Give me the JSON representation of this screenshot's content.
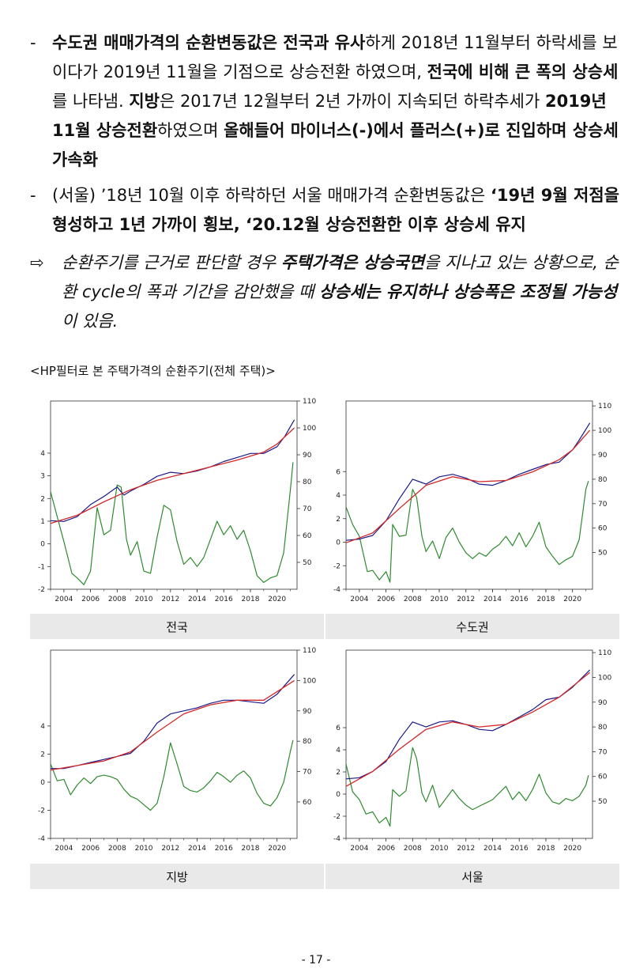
{
  "bullets": [
    {
      "mark": "-",
      "segments": [
        {
          "t": "수도권 매매가격의 순환변동값은 전국과 유사",
          "b": true
        },
        {
          "t": "하게 2018년 11월부터 하락세를 보이다가 2019년 11월을 기점으로 상승전환 하였으며, ",
          "b": false
        },
        {
          "t": "전국에 비해 큰 폭의 상승세",
          "b": true
        },
        {
          "t": "를 나타냄. ",
          "b": false
        },
        {
          "t": "지방",
          "b": true
        },
        {
          "t": "은 2017년 12월부터 2년 가까이 지속되던 하락추세가 ",
          "b": false
        },
        {
          "t": "2019년 11월 상승전환",
          "b": true
        },
        {
          "t": "하였으며 ",
          "b": false
        },
        {
          "t": "올해들어 마이너스(-)에서 플러스(+)로 진입하며 상승세 가속화",
          "b": true
        }
      ]
    },
    {
      "mark": "-",
      "segments": [
        {
          "t": "(서울) ’18년 10월 이후 하락하던 서울 매매가격 순환변동값은 ",
          "b": false
        },
        {
          "t": "‘19년 9월 저점을 형성하고 1년 가까이 횡보, ‘20.12월 상승전환한 이후 상승세 유지",
          "b": true
        }
      ]
    }
  ],
  "conclusion": {
    "mark": "⇨",
    "segments": [
      {
        "t": "순환주기를 근거로 판단할 경우 ",
        "b": false
      },
      {
        "t": "주택가격은 상승국면",
        "b": true
      },
      {
        "t": "을 지나고 있는 상황으로, 순환 cycle의 폭과 기간을 감안했을 때 ",
        "b": false
      },
      {
        "t": "상승세는 유지하나 상승폭은 조정될 가능성",
        "b": true
      },
      {
        "t": "이 있음.",
        "b": false
      }
    ]
  },
  "figure_title": "<HP필터로 본 주택가격의 순환주기(전체 주택)>",
  "colors": {
    "index": "#1a1a8c",
    "trend": "#d42828",
    "cycle": "#2e8b2e"
  },
  "chart_data": [
    {
      "type": "line",
      "caption": "전국",
      "x_ticks": [
        "2004",
        "2006",
        "2008",
        "2010",
        "2012",
        "2014",
        "2016",
        "2018",
        "2020"
      ],
      "left_ticks": [
        "-2",
        "-1",
        "0",
        "1",
        "2",
        "3",
        "4"
      ],
      "right_ticks": [
        "50",
        "60",
        "70",
        "80",
        "90",
        "100",
        "110"
      ],
      "ylim_left": [
        -2,
        6.3
      ],
      "ylim_right": [
        40,
        110
      ],
      "index": [
        [
          2003,
          65.5
        ],
        [
          2004,
          65.2
        ],
        [
          2005,
          67
        ],
        [
          2006,
          71.5
        ],
        [
          2007,
          74.5
        ],
        [
          2008,
          78
        ],
        [
          2008.5,
          75
        ],
        [
          2009,
          76.5
        ],
        [
          2010,
          79
        ],
        [
          2011,
          82
        ],
        [
          2012,
          83.5
        ],
        [
          2013,
          83
        ],
        [
          2014,
          84
        ],
        [
          2015,
          85.5
        ],
        [
          2016,
          87.5
        ],
        [
          2017,
          89
        ],
        [
          2018,
          90.5
        ],
        [
          2019,
          90.5
        ],
        [
          2020,
          93
        ],
        [
          2020.6,
          97
        ],
        [
          2021.3,
          103
        ]
      ],
      "trend": [
        [
          2003,
          64.5
        ],
        [
          2005,
          67.5
        ],
        [
          2007,
          72.5
        ],
        [
          2009,
          77
        ],
        [
          2011,
          80.5
        ],
        [
          2013,
          83
        ],
        [
          2015,
          85.5
        ],
        [
          2017,
          88
        ],
        [
          2019,
          91
        ],
        [
          2020,
          94
        ],
        [
          2021.3,
          100
        ]
      ],
      "cycle": [
        [
          2003,
          2.3
        ],
        [
          2003.5,
          1.2
        ],
        [
          2004,
          0.1
        ],
        [
          2004.6,
          -1.3
        ],
        [
          2005,
          -1.5
        ],
        [
          2005.5,
          -1.8
        ],
        [
          2006,
          -1.2
        ],
        [
          2006.5,
          1.6
        ],
        [
          2007,
          0.4
        ],
        [
          2007.5,
          0.6
        ],
        [
          2008,
          2.6
        ],
        [
          2008.3,
          2.5
        ],
        [
          2008.7,
          0.2
        ],
        [
          2009,
          -0.5
        ],
        [
          2009.5,
          0.1
        ],
        [
          2010,
          -1.2
        ],
        [
          2010.5,
          -1.3
        ],
        [
          2011,
          0.3
        ],
        [
          2011.5,
          1.7
        ],
        [
          2012,
          1.5
        ],
        [
          2012.5,
          0.1
        ],
        [
          2013,
          -0.9
        ],
        [
          2013.5,
          -0.6
        ],
        [
          2014,
          -1
        ],
        [
          2014.5,
          -0.6
        ],
        [
          2015,
          0.2
        ],
        [
          2015.5,
          1
        ],
        [
          2016,
          0.4
        ],
        [
          2016.5,
          0.8
        ],
        [
          2017,
          0.2
        ],
        [
          2017.5,
          0.6
        ],
        [
          2018,
          -0.3
        ],
        [
          2018.5,
          -1.4
        ],
        [
          2019,
          -1.7
        ],
        [
          2019.5,
          -1.5
        ],
        [
          2020,
          -1.4
        ],
        [
          2020.5,
          -0.4
        ],
        [
          2021,
          2.4
        ],
        [
          2021.2,
          3.6
        ]
      ]
    },
    {
      "type": "line",
      "caption": "수도권",
      "x_ticks": [
        "2004",
        "2006",
        "2008",
        "2010",
        "2012",
        "2014",
        "2016",
        "2018",
        "2020"
      ],
      "left_ticks": [
        "-4",
        "-2",
        "0",
        "2",
        "4",
        "6"
      ],
      "right_ticks": [
        "50",
        "60",
        "70",
        "80",
        "90",
        "100",
        "110"
      ],
      "ylim_left": [
        -4,
        12
      ],
      "ylim_right": [
        35,
        112
      ],
      "index": [
        [
          2003,
          55
        ],
        [
          2004,
          55.5
        ],
        [
          2005,
          57
        ],
        [
          2006,
          63
        ],
        [
          2007,
          72
        ],
        [
          2008,
          80
        ],
        [
          2008.5,
          79
        ],
        [
          2009,
          78
        ],
        [
          2010,
          81
        ],
        [
          2011,
          82
        ],
        [
          2012,
          80.5
        ],
        [
          2013,
          78
        ],
        [
          2014,
          77.5
        ],
        [
          2015,
          79.5
        ],
        [
          2016,
          82
        ],
        [
          2017,
          84
        ],
        [
          2018,
          86
        ],
        [
          2019,
          87
        ],
        [
          2020,
          92
        ],
        [
          2020.5,
          96
        ],
        [
          2021.3,
          103
        ]
      ],
      "trend": [
        [
          2003,
          54
        ],
        [
          2005,
          58
        ],
        [
          2007,
          68
        ],
        [
          2009,
          77.5
        ],
        [
          2011,
          81
        ],
        [
          2013,
          79
        ],
        [
          2015,
          79.5
        ],
        [
          2017,
          83
        ],
        [
          2019,
          88
        ],
        [
          2020,
          92
        ],
        [
          2021.3,
          100
        ]
      ],
      "cycle": [
        [
          2003,
          3
        ],
        [
          2003.5,
          1.5
        ],
        [
          2004,
          0.5
        ],
        [
          2004.6,
          -2.5
        ],
        [
          2005,
          -2.4
        ],
        [
          2005.5,
          -3.2
        ],
        [
          2006,
          -2.5
        ],
        [
          2006.3,
          -3.4
        ],
        [
          2006.5,
          1.5
        ],
        [
          2007,
          0.5
        ],
        [
          2007.5,
          0.6
        ],
        [
          2008,
          4.5
        ],
        [
          2008.3,
          3.8
        ],
        [
          2008.7,
          0.5
        ],
        [
          2009,
          -0.8
        ],
        [
          2009.5,
          0.1
        ],
        [
          2010,
          -1.4
        ],
        [
          2010.5,
          0.4
        ],
        [
          2011,
          1.2
        ],
        [
          2011.5,
          0
        ],
        [
          2012,
          -0.9
        ],
        [
          2012.5,
          -1.4
        ],
        [
          2013,
          -0.9
        ],
        [
          2013.5,
          -1.2
        ],
        [
          2014,
          -0.6
        ],
        [
          2014.5,
          -0.2
        ],
        [
          2015,
          0.5
        ],
        [
          2015.5,
          -0.3
        ],
        [
          2016,
          0.8
        ],
        [
          2016.5,
          -0.4
        ],
        [
          2017,
          0.5
        ],
        [
          2017.5,
          1.7
        ],
        [
          2018,
          -0.4
        ],
        [
          2018.5,
          -1.2
        ],
        [
          2019,
          -1.9
        ],
        [
          2019.5,
          -1.5
        ],
        [
          2020,
          -1.2
        ],
        [
          2020.5,
          0.2
        ],
        [
          2021,
          4.5
        ],
        [
          2021.2,
          5.2
        ]
      ]
    },
    {
      "type": "line",
      "caption": "지방",
      "x_ticks": [
        "2004",
        "2006",
        "2008",
        "2010",
        "2012",
        "2014",
        "2016",
        "2018",
        "2020"
      ],
      "left_ticks": [
        "-4",
        "-2",
        "0",
        "2",
        "4"
      ],
      "right_ticks": [
        "60",
        "70",
        "80",
        "90",
        "100",
        "110"
      ],
      "ylim_left": [
        -4,
        9.4
      ],
      "ylim_right": [
        48,
        110
      ],
      "index": [
        [
          2003,
          71
        ],
        [
          2004,
          71
        ],
        [
          2005,
          72
        ],
        [
          2006,
          73
        ],
        [
          2007,
          74
        ],
        [
          2008,
          75
        ],
        [
          2009,
          76
        ],
        [
          2010,
          80
        ],
        [
          2011,
          86
        ],
        [
          2012,
          89
        ],
        [
          2013,
          90
        ],
        [
          2014,
          91
        ],
        [
          2015,
          92.5
        ],
        [
          2016,
          93.5
        ],
        [
          2017,
          93.5
        ],
        [
          2018,
          93
        ],
        [
          2019,
          92.5
        ],
        [
          2020,
          95.5
        ],
        [
          2021.3,
          102
        ]
      ],
      "trend": [
        [
          2003,
          70.5
        ],
        [
          2005,
          72
        ],
        [
          2007,
          73.5
        ],
        [
          2009,
          76.5
        ],
        [
          2011,
          83
        ],
        [
          2013,
          89
        ],
        [
          2015,
          92
        ],
        [
          2017,
          93.5
        ],
        [
          2019,
          93.5
        ],
        [
          2021.3,
          100
        ]
      ],
      "cycle": [
        [
          2003,
          1.3
        ],
        [
          2003.5,
          0.1
        ],
        [
          2004,
          0.2
        ],
        [
          2004.5,
          -0.9
        ],
        [
          2005,
          -0.2
        ],
        [
          2005.5,
          0.3
        ],
        [
          2006,
          -0.1
        ],
        [
          2006.5,
          0.4
        ],
        [
          2007,
          0.5
        ],
        [
          2007.5,
          0.4
        ],
        [
          2008,
          0.2
        ],
        [
          2008.5,
          -0.5
        ],
        [
          2009,
          -1
        ],
        [
          2009.5,
          -1.2
        ],
        [
          2010,
          -1.6
        ],
        [
          2010.5,
          -2
        ],
        [
          2011,
          -1.5
        ],
        [
          2011.5,
          0.4
        ],
        [
          2012,
          2.8
        ],
        [
          2012.5,
          1.3
        ],
        [
          2013,
          -0.3
        ],
        [
          2013.5,
          -0.6
        ],
        [
          2014,
          -0.7
        ],
        [
          2014.5,
          -0.4
        ],
        [
          2015,
          0.1
        ],
        [
          2015.5,
          0.7
        ],
        [
          2016,
          0.4
        ],
        [
          2016.5,
          0
        ],
        [
          2017,
          0.5
        ],
        [
          2017.5,
          0.8
        ],
        [
          2018,
          0.3
        ],
        [
          2018.5,
          -0.8
        ],
        [
          2019,
          -1.5
        ],
        [
          2019.5,
          -1.7
        ],
        [
          2020,
          -1.1
        ],
        [
          2020.5,
          0
        ],
        [
          2021,
          2.2
        ],
        [
          2021.2,
          3
        ]
      ]
    },
    {
      "type": "line",
      "caption": "서울",
      "x_ticks": [
        "2004",
        "2006",
        "2008",
        "2010",
        "2012",
        "2014",
        "2016",
        "2018",
        "2020"
      ],
      "left_ticks": [
        "-4",
        "-2",
        "0",
        "2",
        "4",
        "6"
      ],
      "right_ticks": [
        "50",
        "60",
        "70",
        "80",
        "90",
        "100",
        "110"
      ],
      "ylim_left": [
        -4,
        13
      ],
      "ylim_right": [
        35,
        111
      ],
      "index": [
        [
          2003,
          59
        ],
        [
          2004,
          59.5
        ],
        [
          2005,
          62
        ],
        [
          2006,
          66
        ],
        [
          2007,
          75
        ],
        [
          2008,
          82
        ],
        [
          2008.5,
          81
        ],
        [
          2009,
          80
        ],
        [
          2010,
          82
        ],
        [
          2011,
          82.5
        ],
        [
          2012,
          81
        ],
        [
          2013,
          79
        ],
        [
          2014,
          78.5
        ],
        [
          2015,
          81
        ],
        [
          2016,
          84
        ],
        [
          2017,
          87
        ],
        [
          2018,
          91
        ],
        [
          2019,
          92
        ],
        [
          2020,
          96
        ],
        [
          2021.3,
          103
        ]
      ],
      "trend": [
        [
          2003,
          56
        ],
        [
          2005,
          62
        ],
        [
          2007,
          71
        ],
        [
          2009,
          79
        ],
        [
          2011,
          82
        ],
        [
          2013,
          80
        ],
        [
          2015,
          81
        ],
        [
          2017,
          86
        ],
        [
          2019,
          92
        ],
        [
          2021.3,
          102
        ]
      ],
      "cycle": [
        [
          2003,
          2.7
        ],
        [
          2003.5,
          0.2
        ],
        [
          2004,
          -0.5
        ],
        [
          2004.5,
          -1.8
        ],
        [
          2005,
          -1.6
        ],
        [
          2005.5,
          -2.6
        ],
        [
          2006,
          -2.1
        ],
        [
          2006.3,
          -2.9
        ],
        [
          2006.5,
          0.4
        ],
        [
          2007,
          -0.2
        ],
        [
          2007.5,
          0.3
        ],
        [
          2008,
          4.2
        ],
        [
          2008.3,
          3.2
        ],
        [
          2008.7,
          0.1
        ],
        [
          2009,
          -0.7
        ],
        [
          2009.5,
          0.8
        ],
        [
          2010,
          -1.2
        ],
        [
          2010.5,
          -0.4
        ],
        [
          2011,
          0.4
        ],
        [
          2011.5,
          -0.4
        ],
        [
          2012,
          -1
        ],
        [
          2012.5,
          -1.4
        ],
        [
          2013,
          -1.1
        ],
        [
          2013.5,
          -0.8
        ],
        [
          2014,
          -0.5
        ],
        [
          2014.5,
          0.1
        ],
        [
          2015,
          0.7
        ],
        [
          2015.5,
          -0.5
        ],
        [
          2016,
          0.2
        ],
        [
          2016.5,
          -0.6
        ],
        [
          2017,
          0.4
        ],
        [
          2017.5,
          1.8
        ],
        [
          2018,
          0.1
        ],
        [
          2018.5,
          -0.7
        ],
        [
          2019,
          -0.9
        ],
        [
          2019.5,
          -0.4
        ],
        [
          2020,
          -0.6
        ],
        [
          2020.5,
          -0.2
        ],
        [
          2021,
          0.8
        ],
        [
          2021.2,
          1.7
        ]
      ]
    }
  ],
  "page_number": "- 17 -"
}
